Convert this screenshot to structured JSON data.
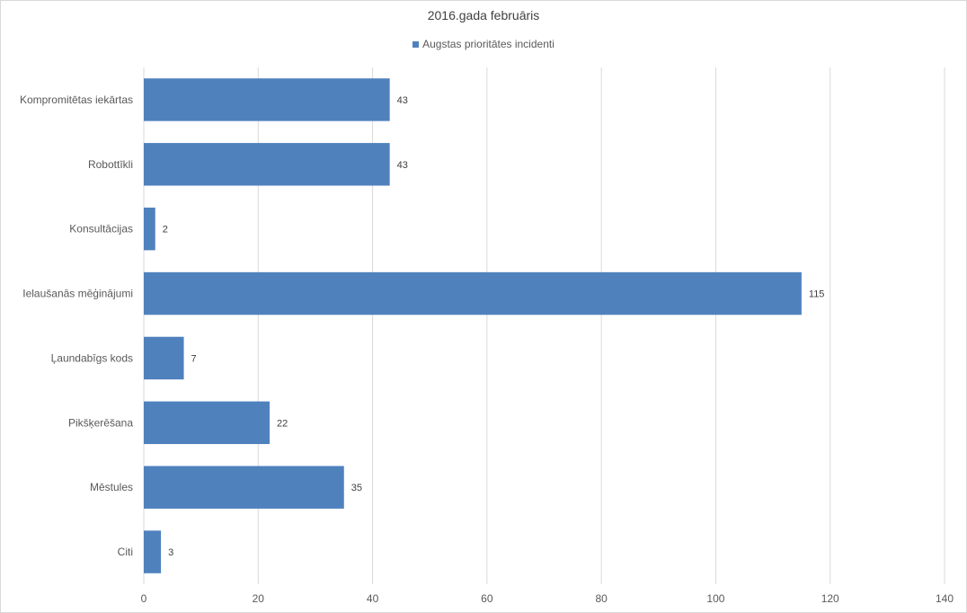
{
  "chart_data": {
    "type": "bar",
    "orientation": "horizontal",
    "title": "2016.gada februāris",
    "categories": [
      "Kompromitētas iekārtas",
      "Robottīkli",
      "Konsultācijas",
      "Ielaušanās mēģinājumi",
      "Ļaundabīgs kods",
      "Pikšķerēšana",
      "Mēstules",
      "Citi"
    ],
    "series": [
      {
        "name": "Augstas prioritātes incidenti",
        "values": [
          43,
          43,
          2,
          115,
          7,
          22,
          35,
          3
        ],
        "color": "#4f81bd"
      }
    ],
    "x_ticks": [
      "0",
      "20",
      "40",
      "60",
      "80",
      "100",
      "120",
      "140"
    ],
    "xlim": [
      0,
      140
    ],
    "grid": true,
    "legend_position": "top",
    "data_labels": true
  }
}
